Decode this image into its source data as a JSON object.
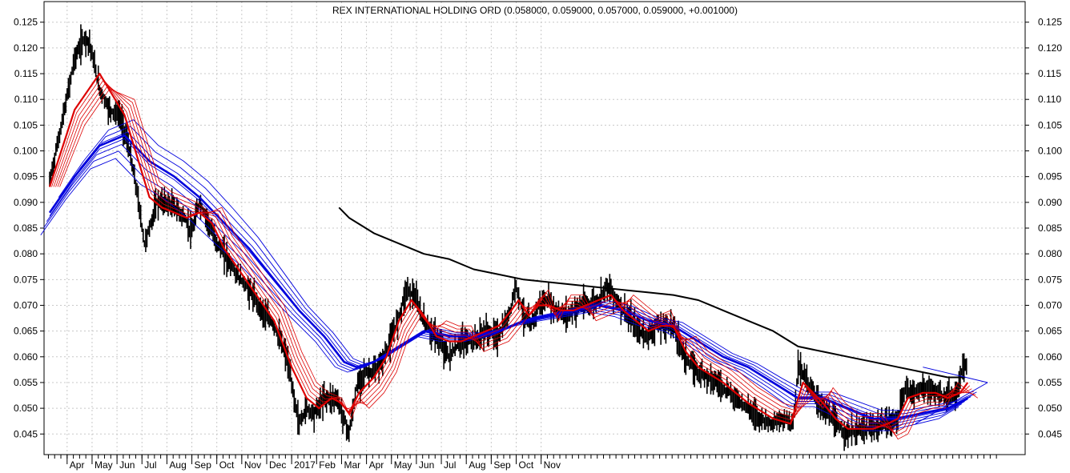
{
  "chart_data": {
    "type": "line",
    "title": "REX INTERNATIONAL HOLDING ORD (0.058000, 0.059000, 0.057000, 0.059000, +0.001000)",
    "ylim": [
      0.041,
      0.129
    ],
    "yticks": [
      "0.045",
      "0.050",
      "0.055",
      "0.060",
      "0.065",
      "0.070",
      "0.075",
      "0.080",
      "0.085",
      "0.090",
      "0.095",
      "0.100",
      "0.105",
      "0.110",
      "0.115",
      "0.120",
      "0.125"
    ],
    "months": [
      "Apr",
      "May",
      "Jun",
      "Jul",
      "Aug",
      "Sep",
      "Oct",
      "Nov",
      "Dec",
      "2017",
      "Feb",
      "Mar",
      "Apr",
      "May",
      "Jun",
      "Jul",
      "Aug",
      "Sep",
      "Oct",
      "Nov"
    ],
    "grid": true,
    "series": [
      {
        "role": "price",
        "color": "#000000",
        "points": [
          [
            0.0,
            0.094
          ],
          [
            0.6,
            0.108
          ],
          [
            1.0,
            0.118
          ],
          [
            1.4,
            0.122
          ],
          [
            1.6,
            0.121
          ],
          [
            2.0,
            0.112
          ],
          [
            2.4,
            0.108
          ],
          [
            2.8,
            0.107
          ],
          [
            3.0,
            0.104
          ],
          [
            3.2,
            0.1
          ],
          [
            3.5,
            0.092
          ],
          [
            3.8,
            0.082
          ],
          [
            4.0,
            0.085
          ],
          [
            4.3,
            0.09
          ],
          [
            4.6,
            0.09
          ],
          [
            5.0,
            0.089
          ],
          [
            5.4,
            0.087
          ],
          [
            5.7,
            0.084
          ],
          [
            6.0,
            0.09
          ],
          [
            6.3,
            0.087
          ],
          [
            6.6,
            0.083
          ],
          [
            7.0,
            0.08
          ],
          [
            7.5,
            0.076
          ],
          [
            8.0,
            0.073
          ],
          [
            8.5,
            0.069
          ],
          [
            9.0,
            0.066
          ],
          [
            9.5,
            0.06
          ],
          [
            9.8,
            0.052
          ],
          [
            10.0,
            0.047
          ],
          [
            10.3,
            0.05
          ],
          [
            10.6,
            0.049
          ],
          [
            11.0,
            0.052
          ],
          [
            11.5,
            0.052
          ],
          [
            11.8,
            0.048
          ],
          [
            12.0,
            0.045
          ],
          [
            12.3,
            0.054
          ],
          [
            12.6,
            0.057
          ],
          [
            13.0,
            0.057
          ],
          [
            13.3,
            0.059
          ],
          [
            13.6,
            0.062
          ],
          [
            14.0,
            0.068
          ],
          [
            14.3,
            0.073
          ],
          [
            14.6,
            0.072
          ],
          [
            15.0,
            0.067
          ],
          [
            15.3,
            0.065
          ],
          [
            15.6,
            0.063
          ],
          [
            16.0,
            0.06
          ],
          [
            16.5,
            0.063
          ],
          [
            17.0,
            0.063
          ],
          [
            17.5,
            0.065
          ],
          [
            18.0,
            0.064
          ],
          [
            18.4,
            0.068
          ],
          [
            18.7,
            0.074
          ],
          [
            19.0,
            0.068
          ],
          [
            19.3,
            0.066
          ],
          [
            19.6,
            0.07
          ],
          [
            20.0,
            0.071
          ],
          [
            20.3,
            0.069
          ],
          [
            20.7,
            0.068
          ],
          [
            21.0,
            0.069
          ],
          [
            21.3,
            0.07
          ],
          [
            21.6,
            0.07
          ],
          [
            22.0,
            0.071
          ],
          [
            22.3,
            0.074
          ],
          [
            22.6,
            0.072
          ],
          [
            23.0,
            0.069
          ],
          [
            23.3,
            0.067
          ],
          [
            23.6,
            0.065
          ],
          [
            24.0,
            0.064
          ],
          [
            24.3,
            0.066
          ],
          [
            24.6,
            0.066
          ],
          [
            25.0,
            0.066
          ],
          [
            25.3,
            0.062
          ],
          [
            25.6,
            0.059
          ],
          [
            26.0,
            0.057
          ],
          [
            26.5,
            0.056
          ],
          [
            27.0,
            0.054
          ],
          [
            27.5,
            0.052
          ],
          [
            28.0,
            0.05
          ],
          [
            28.5,
            0.048
          ],
          [
            29.0,
            0.047
          ],
          [
            29.5,
            0.048
          ],
          [
            29.8,
            0.047
          ],
          [
            30.0,
            0.058
          ],
          [
            30.3,
            0.056
          ],
          [
            30.6,
            0.053
          ],
          [
            31.0,
            0.05
          ],
          [
            31.5,
            0.047
          ],
          [
            32.0,
            0.045
          ],
          [
            32.5,
            0.046
          ],
          [
            33.0,
            0.046
          ],
          [
            33.5,
            0.047
          ],
          [
            34.0,
            0.048
          ],
          [
            34.3,
            0.054
          ],
          [
            34.6,
            0.053
          ],
          [
            35.0,
            0.054
          ],
          [
            35.5,
            0.053
          ],
          [
            36.0,
            0.052
          ],
          [
            36.3,
            0.052
          ],
          [
            36.6,
            0.058
          ],
          [
            36.8,
            0.058
          ]
        ]
      },
      {
        "role": "short-term-averages",
        "color": "#dd0000",
        "points": [
          [
            0.0,
            0.093
          ],
          [
            1.0,
            0.108
          ],
          [
            2.0,
            0.115
          ],
          [
            3.0,
            0.107
          ],
          [
            4.0,
            0.091
          ],
          [
            4.5,
            0.089
          ],
          [
            5.0,
            0.088
          ],
          [
            5.5,
            0.087
          ],
          [
            6.0,
            0.088
          ],
          [
            6.5,
            0.086
          ],
          [
            7.0,
            0.081
          ],
          [
            8.0,
            0.074
          ],
          [
            9.0,
            0.067
          ],
          [
            9.7,
            0.058
          ],
          [
            10.3,
            0.052
          ],
          [
            10.8,
            0.05
          ],
          [
            11.3,
            0.052
          ],
          [
            11.7,
            0.051
          ],
          [
            12.0,
            0.049
          ],
          [
            12.4,
            0.053
          ],
          [
            13.0,
            0.056
          ],
          [
            13.5,
            0.06
          ],
          [
            14.0,
            0.067
          ],
          [
            14.5,
            0.071
          ],
          [
            15.0,
            0.068
          ],
          [
            15.5,
            0.064
          ],
          [
            16.0,
            0.063
          ],
          [
            16.5,
            0.063
          ],
          [
            17.0,
            0.064
          ],
          [
            17.5,
            0.065
          ],
          [
            18.0,
            0.066
          ],
          [
            18.5,
            0.069
          ],
          [
            18.8,
            0.071
          ],
          [
            19.2,
            0.068
          ],
          [
            19.6,
            0.07
          ],
          [
            20.0,
            0.07
          ],
          [
            20.5,
            0.069
          ],
          [
            21.0,
            0.069
          ],
          [
            21.5,
            0.07
          ],
          [
            22.0,
            0.071
          ],
          [
            22.5,
            0.072
          ],
          [
            23.0,
            0.069
          ],
          [
            23.5,
            0.067
          ],
          [
            24.0,
            0.065
          ],
          [
            24.5,
            0.066
          ],
          [
            25.0,
            0.066
          ],
          [
            25.5,
            0.061
          ],
          [
            26.0,
            0.058
          ],
          [
            27.0,
            0.055
          ],
          [
            28.0,
            0.051
          ],
          [
            29.0,
            0.048
          ],
          [
            29.7,
            0.047
          ],
          [
            30.2,
            0.055
          ],
          [
            30.6,
            0.053
          ],
          [
            31.0,
            0.051
          ],
          [
            31.5,
            0.048
          ],
          [
            32.0,
            0.046
          ],
          [
            33.0,
            0.046
          ],
          [
            33.6,
            0.047
          ],
          [
            34.0,
            0.048
          ],
          [
            34.4,
            0.052
          ],
          [
            35.0,
            0.053
          ],
          [
            35.5,
            0.053
          ],
          [
            36.0,
            0.052
          ],
          [
            36.5,
            0.053
          ],
          [
            36.8,
            0.055
          ]
        ]
      },
      {
        "role": "long-term-averages",
        "color": "#0000dd",
        "points": [
          [
            0.0,
            0.088
          ],
          [
            1.0,
            0.095
          ],
          [
            2.0,
            0.101
          ],
          [
            3.0,
            0.103
          ],
          [
            4.0,
            0.098
          ],
          [
            5.0,
            0.095
          ],
          [
            6.0,
            0.091
          ],
          [
            7.0,
            0.086
          ],
          [
            8.0,
            0.081
          ],
          [
            9.0,
            0.075
          ],
          [
            10.0,
            0.069
          ],
          [
            11.0,
            0.064
          ],
          [
            11.8,
            0.059
          ],
          [
            12.3,
            0.058
          ],
          [
            13.0,
            0.059
          ],
          [
            14.0,
            0.062
          ],
          [
            15.0,
            0.065
          ],
          [
            16.0,
            0.064
          ],
          [
            17.0,
            0.064
          ],
          [
            18.0,
            0.065
          ],
          [
            19.0,
            0.067
          ],
          [
            20.0,
            0.068
          ],
          [
            21.0,
            0.069
          ],
          [
            22.0,
            0.07
          ],
          [
            23.0,
            0.069
          ],
          [
            24.0,
            0.067
          ],
          [
            25.0,
            0.066
          ],
          [
            26.0,
            0.063
          ],
          [
            27.0,
            0.06
          ],
          [
            28.0,
            0.058
          ],
          [
            29.0,
            0.055
          ],
          [
            30.0,
            0.052
          ],
          [
            31.0,
            0.052
          ],
          [
            32.0,
            0.05
          ],
          [
            33.0,
            0.048
          ],
          [
            34.0,
            0.048
          ],
          [
            35.0,
            0.049
          ],
          [
            36.0,
            0.05
          ],
          [
            36.8,
            0.052
          ]
        ]
      },
      {
        "role": "200-day-average",
        "color": "#000000",
        "points": [
          [
            11.6,
            0.089
          ],
          [
            12.0,
            0.087
          ],
          [
            13.0,
            0.084
          ],
          [
            14.0,
            0.082
          ],
          [
            15.0,
            0.08
          ],
          [
            16.0,
            0.079
          ],
          [
            17.0,
            0.077
          ],
          [
            18.0,
            0.076
          ],
          [
            19.0,
            0.075
          ],
          [
            20.0,
            0.0745
          ],
          [
            21.0,
            0.074
          ],
          [
            22.0,
            0.0735
          ],
          [
            23.0,
            0.073
          ],
          [
            24.0,
            0.0725
          ],
          [
            25.0,
            0.072
          ],
          [
            26.0,
            0.071
          ],
          [
            27.0,
            0.069
          ],
          [
            28.0,
            0.067
          ],
          [
            29.0,
            0.065
          ],
          [
            30.0,
            0.062
          ],
          [
            31.0,
            0.061
          ],
          [
            32.0,
            0.06
          ],
          [
            33.0,
            0.059
          ],
          [
            34.0,
            0.058
          ],
          [
            35.0,
            0.057
          ],
          [
            36.0,
            0.056
          ],
          [
            36.7,
            0.056
          ]
        ]
      }
    ],
    "trendlines": [
      {
        "color": "#0000dd",
        "points": [
          [
            35.0,
            0.058
          ],
          [
            37.6,
            0.055
          ]
        ]
      },
      {
        "color": "#0000dd",
        "points": [
          [
            34.7,
            0.047
          ],
          [
            37.6,
            0.055
          ]
        ]
      }
    ]
  }
}
